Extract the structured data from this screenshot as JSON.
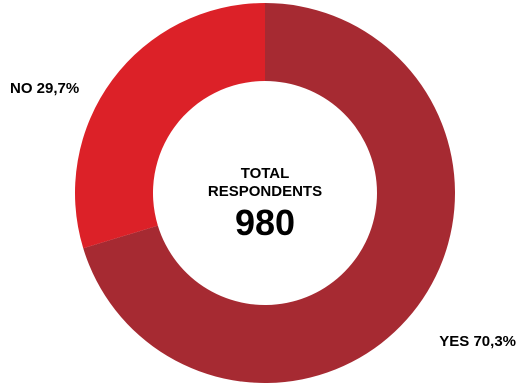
{
  "chart_data": {
    "type": "pie",
    "variant": "donut",
    "categories": [
      "YES",
      "NO"
    ],
    "values": [
      70.3,
      29.7
    ],
    "value_labels": [
      "70,3%",
      "29,7%"
    ],
    "colors": [
      "#a62a32",
      "#dc2128"
    ],
    "center": {
      "line1": "TOTAL",
      "line2": "RESPONDENTS",
      "value": "980"
    },
    "legend": "none"
  }
}
